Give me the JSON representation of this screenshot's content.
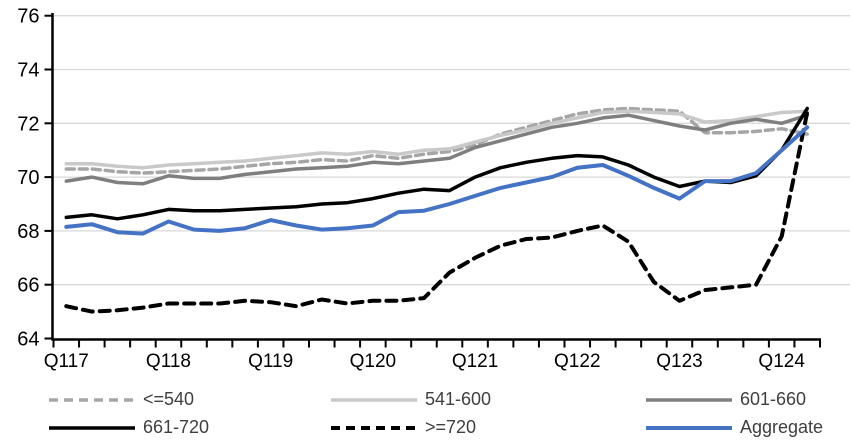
{
  "chart_data": {
    "type": "line",
    "title": "",
    "xlabel": "",
    "ylabel": "",
    "ylim": [
      64,
      76
    ],
    "y_ticks": [
      64,
      66,
      68,
      70,
      72,
      74,
      76
    ],
    "x_tick_labels": [
      "Q117",
      "Q118",
      "Q119",
      "Q120",
      "Q121",
      "Q122",
      "Q123",
      "Q124"
    ],
    "x_unit": "quarter",
    "points_per_year": 4,
    "n_points": 30,
    "grid": true,
    "legend_position": "bottom",
    "series": [
      {
        "name": "<=540",
        "color": "#a6a6a6",
        "style": "dashed",
        "width": 3.5,
        "values": [
          70.3,
          70.3,
          70.2,
          70.15,
          70.2,
          70.25,
          70.3,
          70.4,
          70.5,
          70.55,
          70.65,
          70.6,
          70.8,
          70.7,
          70.85,
          70.95,
          71.2,
          71.6,
          71.85,
          72.1,
          72.35,
          72.5,
          72.55,
          72.5,
          72.45,
          71.65,
          71.65,
          71.7,
          71.8,
          71.6
        ]
      },
      {
        "name": "541-600",
        "color": "#c9c9c9",
        "style": "solid",
        "width": 3.5,
        "values": [
          70.5,
          70.5,
          70.4,
          70.35,
          70.45,
          70.5,
          70.55,
          70.6,
          70.7,
          70.8,
          70.9,
          70.85,
          70.95,
          70.85,
          71.0,
          71.05,
          71.3,
          71.55,
          71.75,
          72.0,
          72.2,
          72.4,
          72.45,
          72.4,
          72.35,
          72.05,
          72.1,
          72.25,
          72.4,
          72.45
        ]
      },
      {
        "name": "601-660",
        "color": "#7f7f7f",
        "style": "solid",
        "width": 3.5,
        "values": [
          69.85,
          70.0,
          69.8,
          69.75,
          70.05,
          69.95,
          69.95,
          70.1,
          70.2,
          70.3,
          70.35,
          70.4,
          70.55,
          70.5,
          70.6,
          70.7,
          71.1,
          71.35,
          71.6,
          71.85,
          72.0,
          72.2,
          72.3,
          72.1,
          71.9,
          71.75,
          72.0,
          72.15,
          72.0,
          72.3
        ]
      },
      {
        "name": "661-720",
        "color": "#000000",
        "style": "solid",
        "width": 3.5,
        "values": [
          68.5,
          68.6,
          68.45,
          68.6,
          68.8,
          68.75,
          68.75,
          68.8,
          68.85,
          68.9,
          69.0,
          69.05,
          69.2,
          69.4,
          69.55,
          69.5,
          70.0,
          70.35,
          70.55,
          70.7,
          70.8,
          70.75,
          70.45,
          70.0,
          69.65,
          69.85,
          69.8,
          70.05,
          71.0,
          72.55
        ]
      },
      {
        "name": ">=720",
        "color": "#000000",
        "style": "dashed",
        "width": 4,
        "values": [
          65.2,
          65.0,
          65.05,
          65.15,
          65.3,
          65.3,
          65.3,
          65.4,
          65.35,
          65.2,
          65.45,
          65.3,
          65.4,
          65.4,
          65.5,
          66.45,
          67.0,
          67.45,
          67.7,
          67.75,
          68.0,
          68.2,
          67.6,
          66.1,
          65.4,
          65.8,
          65.9,
          66.0,
          67.8,
          72.4
        ]
      },
      {
        "name": "Aggregate",
        "color": "#4472c4",
        "style": "solid",
        "width": 4,
        "values": [
          68.15,
          68.25,
          67.95,
          67.9,
          68.35,
          68.05,
          68.0,
          68.1,
          68.4,
          68.2,
          68.05,
          68.1,
          68.2,
          68.7,
          68.75,
          69.0,
          69.3,
          69.6,
          69.8,
          70.0,
          70.35,
          70.45,
          70.05,
          69.6,
          69.2,
          69.85,
          69.85,
          70.15,
          71.0,
          71.85
        ]
      }
    ],
    "legend_rows": [
      [
        0,
        1,
        2
      ],
      [
        3,
        4,
        5
      ]
    ]
  },
  "colors": {
    "background": "#ffffff",
    "gridline": "#d9d9d9",
    "axis": "#000000",
    "tick_label": "#000000",
    "legend_text": "#3f3f3f"
  }
}
